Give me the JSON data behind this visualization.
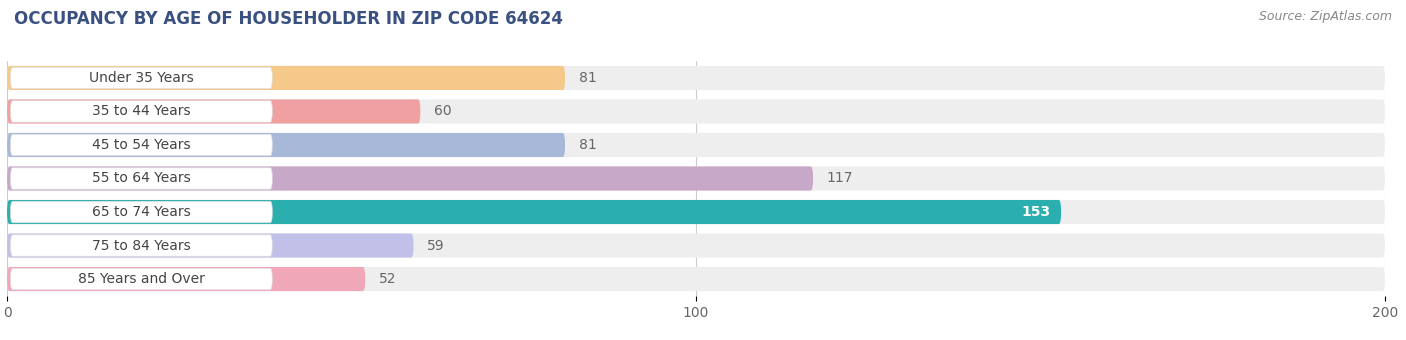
{
  "title": "OCCUPANCY BY AGE OF HOUSEHOLDER IN ZIP CODE 64624",
  "source": "Source: ZipAtlas.com",
  "categories": [
    "Under 35 Years",
    "35 to 44 Years",
    "45 to 54 Years",
    "55 to 64 Years",
    "65 to 74 Years",
    "75 to 84 Years",
    "85 Years and Over"
  ],
  "values": [
    81,
    60,
    81,
    117,
    153,
    59,
    52
  ],
  "bar_colors": [
    "#f5c98a",
    "#f0a0a0",
    "#a8b8d8",
    "#c8a8c8",
    "#2aaeae",
    "#c0c0e8",
    "#f0a8b8"
  ],
  "bar_bg_color": "#eeeeee",
  "xlim": [
    0,
    200
  ],
  "xticks": [
    0,
    100,
    200
  ],
  "bar_height": 0.72,
  "label_color_default": "#666666",
  "label_color_white": "#ffffff",
  "title_fontsize": 12,
  "source_fontsize": 9,
  "tick_fontsize": 10,
  "cat_fontsize": 10,
  "value_fontsize": 10,
  "background_color": "#ffffff",
  "grid_color": "#cccccc",
  "title_color": "#3a5080"
}
